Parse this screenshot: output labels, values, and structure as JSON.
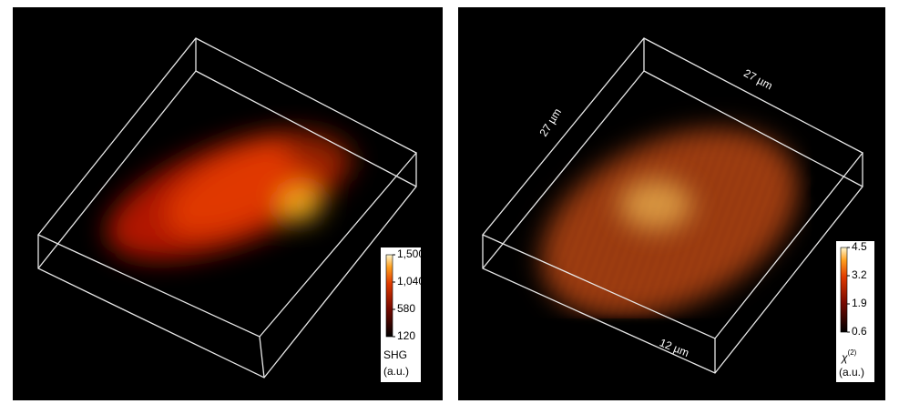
{
  "panels": [
    {
      "colorbar": {
        "range": [
          120,
          1500
        ],
        "ticks": [
          {
            "value": 1500,
            "label": "1,500"
          },
          {
            "value": 1040,
            "label": "1,040"
          },
          580,
          120
        ],
        "label": "SHG",
        "unit": "(a.u.)"
      }
    },
    {
      "colorbar": {
        "range": [
          0.6,
          4.5
        ],
        "ticks": [
          4.5,
          3.2,
          1.9,
          0.6
        ],
        "symbol": "χ",
        "superscript": "(2)",
        "unit": "(a.u.)"
      },
      "dimensions": [
        "27 µm",
        "27 µm",
        "12 µm"
      ]
    }
  ]
}
